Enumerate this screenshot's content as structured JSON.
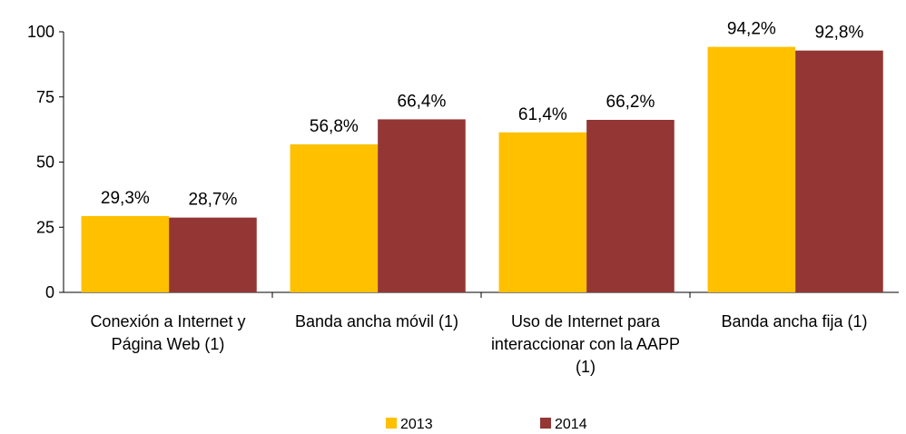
{
  "chart_data": {
    "type": "bar",
    "categories": [
      "Conexión a Internet y Página Web (1)",
      "Banda ancha móvil (1)",
      "Uso de Internet para interaccionar con la AAPP (1)",
      "Banda ancha fija (1)"
    ],
    "series": [
      {
        "name": "2013",
        "color": "#FFC000",
        "values": [
          29.3,
          56.8,
          61.4,
          94.2
        ],
        "value_labels": [
          "29,3%",
          "56,8%",
          "61,4%",
          "94,2%"
        ]
      },
      {
        "name": "2014",
        "color": "#943634",
        "values": [
          28.7,
          66.4,
          66.2,
          92.8
        ],
        "value_labels": [
          "28,7%",
          "66,4%",
          "66,2%",
          "92,8%"
        ]
      }
    ],
    "ylim": [
      0,
      100
    ],
    "yticks": [
      0,
      25,
      50,
      75,
      100
    ],
    "grid": false,
    "legend": "bottom"
  }
}
